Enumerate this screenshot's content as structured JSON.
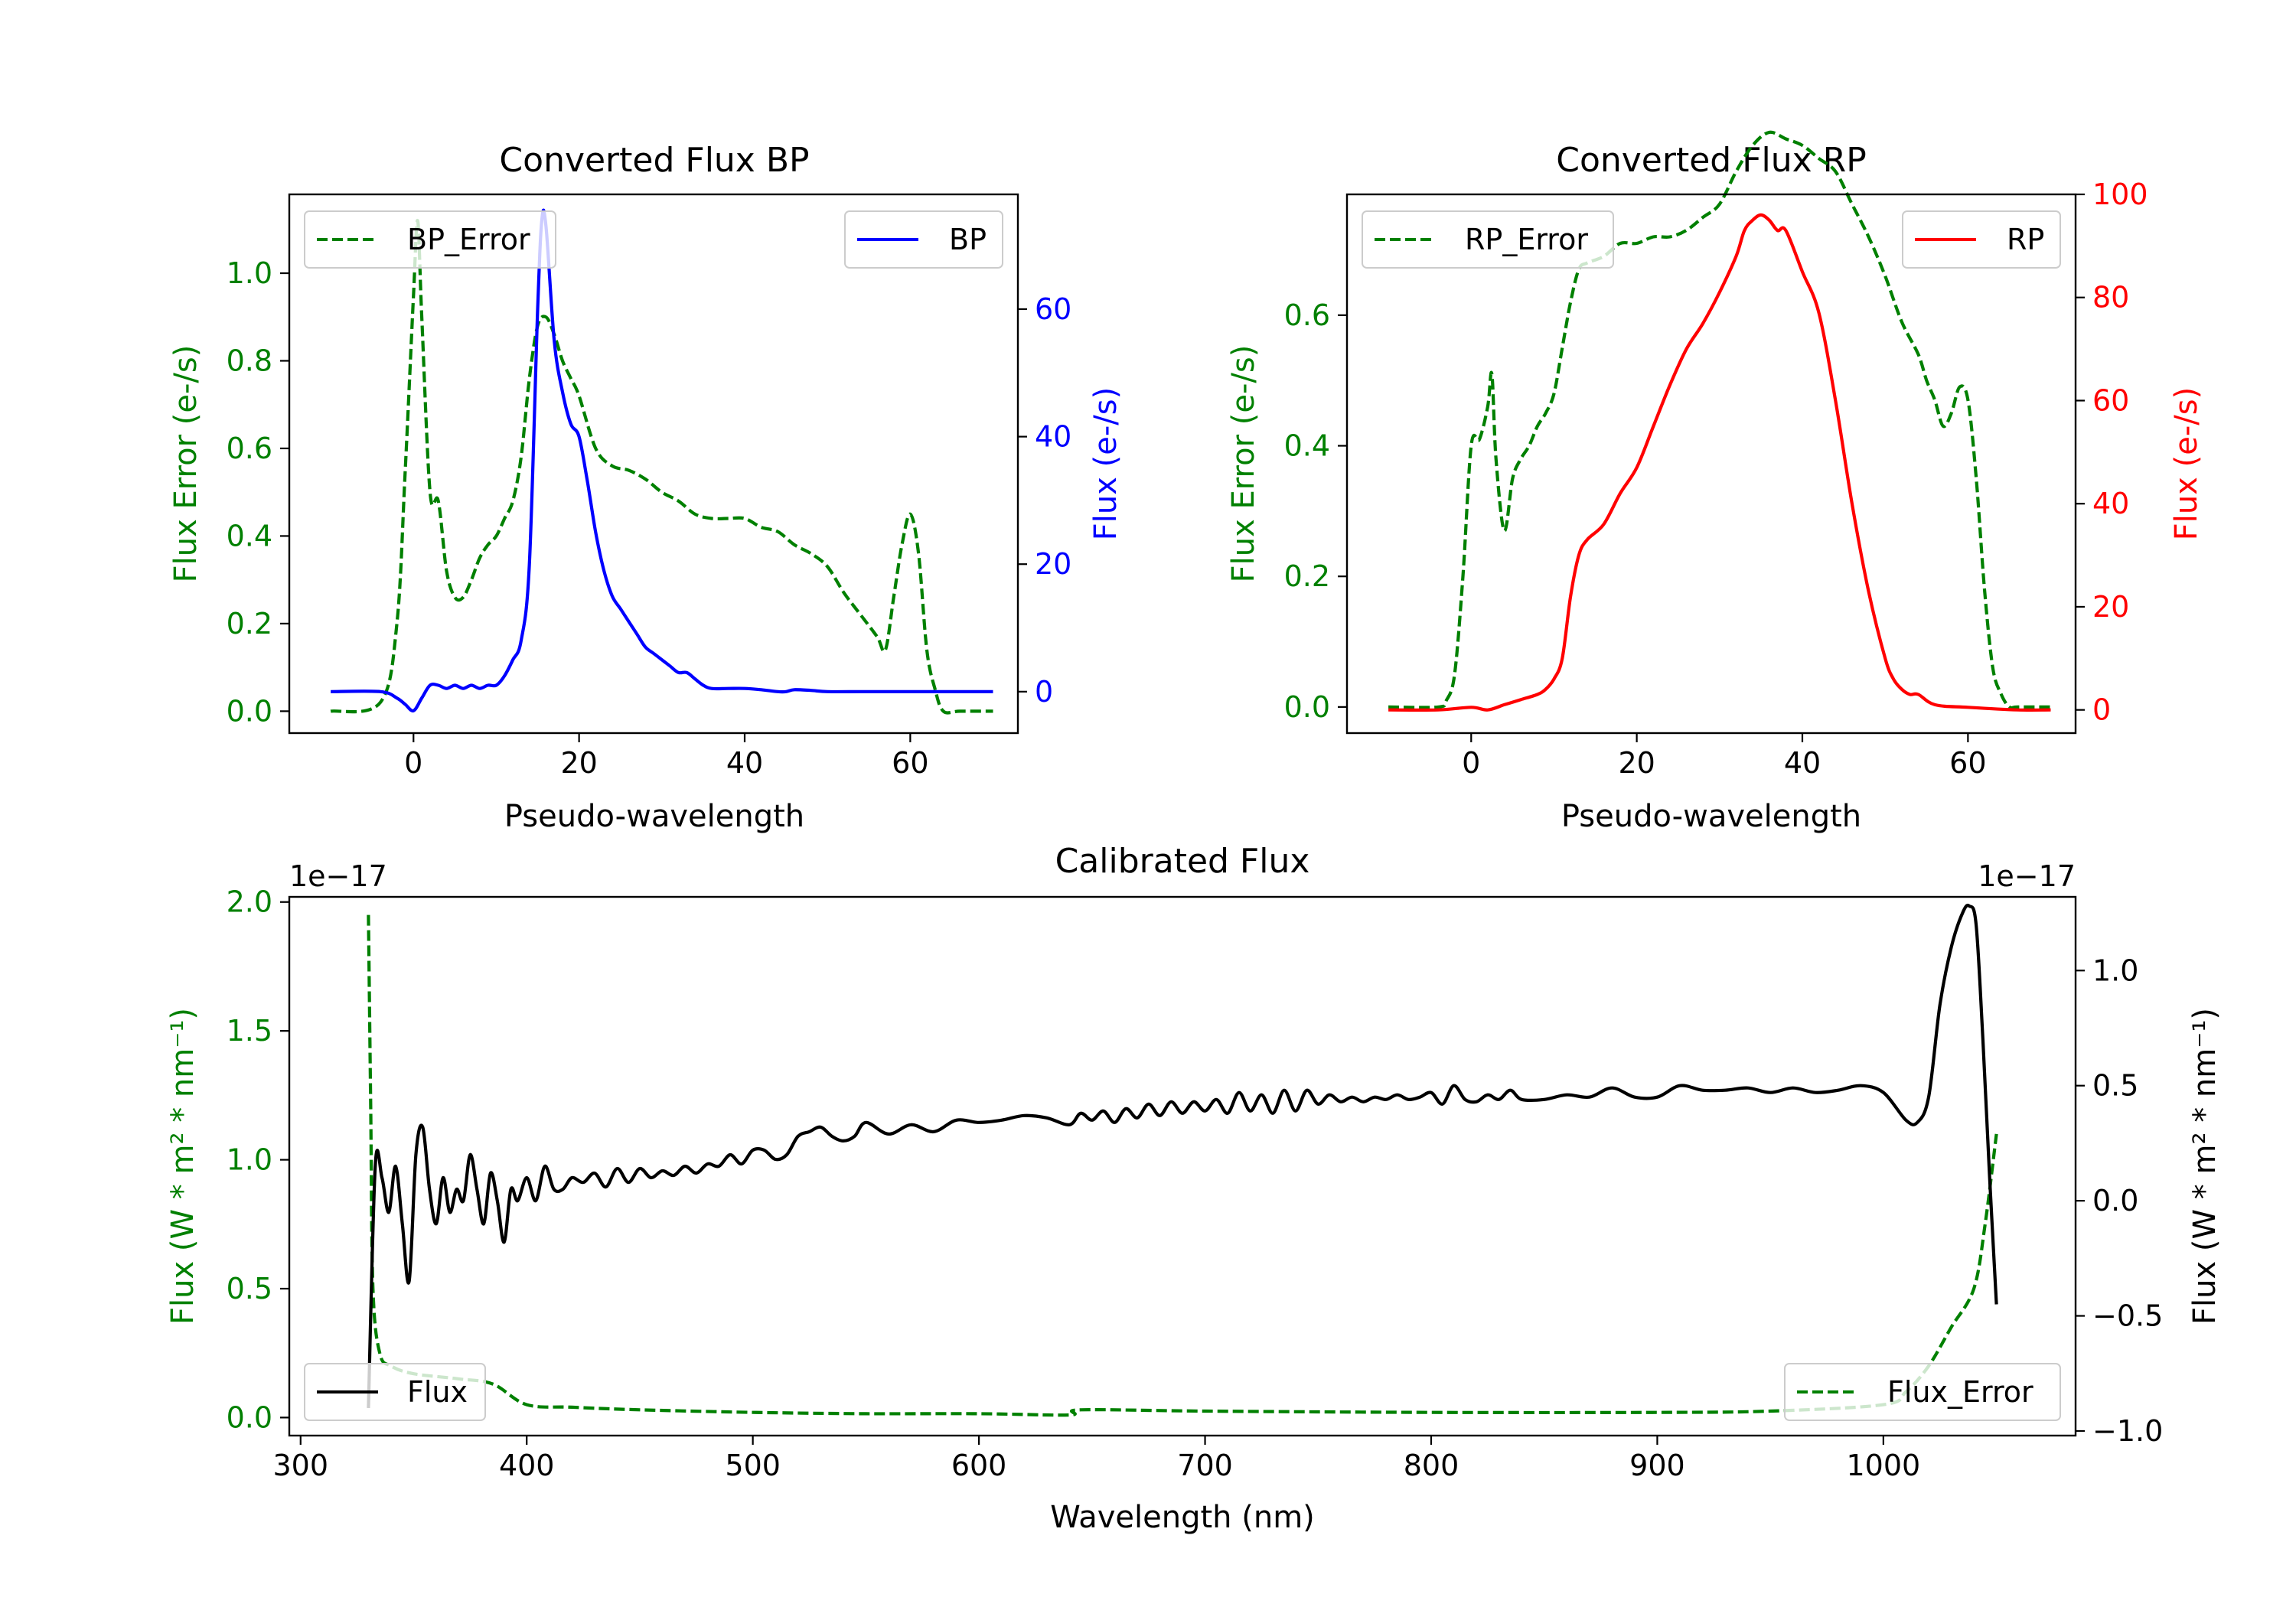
{
  "figure": {
    "type": "multi-panel-chart"
  },
  "chart_data": [
    {
      "id": "bp",
      "type": "line",
      "title": "Converted Flux BP",
      "xlabel": "Pseudo-wavelength",
      "ylabel_left": "Flux Error (e-/s)",
      "ylabel_right": "Flux (e-/s)",
      "xlim": [
        -15,
        73
      ],
      "ylim_left": [
        -0.05,
        1.18
      ],
      "ylim_right": [
        -6.5,
        78
      ],
      "xticks": [
        "0",
        "20",
        "40",
        "60"
      ],
      "yticks_left": [
        "0.0",
        "0.2",
        "0.4",
        "0.6",
        "0.8",
        "1.0"
      ],
      "yticks_right": [
        "0",
        "20",
        "40",
        "60"
      ],
      "legend_left": "BP_Error",
      "legend_right": "BP",
      "colors": {
        "error": "#008000",
        "flux": "#0000ff"
      },
      "series": [
        {
          "name": "BP_Error",
          "axis": "left",
          "style": "dashed",
          "color": "#008000",
          "x": [
            -10,
            -4,
            -2,
            -1,
            0,
            0.5,
            1,
            2,
            3,
            4,
            5,
            6,
            7,
            8,
            9,
            10,
            11,
            12,
            13,
            14,
            15,
            16,
            17,
            18,
            19,
            20,
            22,
            24,
            26,
            28,
            30,
            32,
            34,
            36,
            38,
            40,
            42,
            44,
            46,
            48,
            50,
            52,
            54,
            56,
            57,
            58,
            59,
            60,
            61,
            62,
            63,
            64,
            66,
            70
          ],
          "values": [
            0.0,
            0.02,
            0.2,
            0.55,
            0.95,
            1.12,
            0.9,
            0.5,
            0.48,
            0.32,
            0.26,
            0.26,
            0.3,
            0.35,
            0.38,
            0.4,
            0.44,
            0.48,
            0.58,
            0.76,
            0.88,
            0.9,
            0.86,
            0.8,
            0.76,
            0.72,
            0.6,
            0.56,
            0.55,
            0.53,
            0.5,
            0.48,
            0.45,
            0.44,
            0.44,
            0.44,
            0.42,
            0.41,
            0.38,
            0.36,
            0.33,
            0.27,
            0.22,
            0.17,
            0.14,
            0.26,
            0.38,
            0.45,
            0.36,
            0.14,
            0.05,
            0.0,
            0.0,
            0.0
          ]
        },
        {
          "name": "BP",
          "axis": "right",
          "style": "solid",
          "color": "#0000ff",
          "x": [
            -10,
            -4,
            -2,
            -1,
            0,
            1,
            2,
            3,
            4,
            5,
            6,
            7,
            8,
            9,
            10,
            11,
            12,
            13,
            14,
            15,
            15.5,
            16,
            17,
            18,
            19,
            20,
            21,
            22,
            23,
            24,
            25,
            26,
            27,
            28,
            29,
            30,
            31,
            32,
            33,
            34,
            35,
            36,
            38,
            40,
            42,
            44,
            45,
            46,
            48,
            50,
            54,
            58,
            62,
            70
          ],
          "values": [
            0,
            0,
            -1,
            -2,
            -3,
            -1,
            1,
            1,
            0.5,
            1,
            0.5,
            1,
            0.5,
            1,
            1,
            2.5,
            5,
            8,
            20,
            60,
            74,
            73,
            55,
            47,
            42,
            40,
            33,
            25,
            19,
            15,
            13,
            11,
            9,
            7,
            6,
            5,
            4,
            3,
            3,
            2,
            1,
            0.5,
            0.5,
            0.5,
            0.3,
            0,
            0,
            0.3,
            0.2,
            0,
            0,
            0,
            0,
            0
          ]
        }
      ]
    },
    {
      "id": "rp",
      "type": "line",
      "title": "Converted Flux RP",
      "xlabel": "Pseudo-wavelength",
      "ylabel_left": "Flux Error (e-/s)",
      "ylabel_right": "Flux (e-/s)",
      "xlim": [
        -15,
        73
      ],
      "ylim_left": [
        -0.04,
        0.785
      ],
      "ylim_right": [
        -4.5,
        100
      ],
      "xticks": [
        "0",
        "20",
        "40",
        "60"
      ],
      "yticks_left": [
        "0.0",
        "0.2",
        "0.4",
        "0.6"
      ],
      "yticks_right": [
        "0",
        "20",
        "40",
        "60",
        "80",
        "100"
      ],
      "legend_left": "RP_Error",
      "legend_right": "RP",
      "colors": {
        "error": "#008000",
        "flux": "#ff0000"
      },
      "series": [
        {
          "name": "RP_Error",
          "axis": "left",
          "style": "dashed",
          "color": "#008000",
          "x": [
            -10,
            -4,
            -3,
            -2,
            -1,
            0,
            1,
            2,
            2.5,
            3,
            4,
            5,
            6,
            7,
            8,
            9,
            10,
            11,
            12,
            13,
            14,
            16,
            18,
            20,
            22,
            24,
            26,
            28,
            30,
            32,
            34,
            36,
            38,
            40,
            42,
            44,
            46,
            48,
            50,
            52,
            54,
            55,
            56,
            57,
            58,
            59,
            60,
            61,
            62,
            63,
            64,
            65,
            66,
            70
          ],
          "values": [
            0,
            0,
            0.01,
            0.05,
            0.2,
            0.4,
            0.41,
            0.46,
            0.51,
            0.38,
            0.27,
            0.35,
            0.38,
            0.4,
            0.43,
            0.45,
            0.48,
            0.55,
            0.62,
            0.67,
            0.68,
            0.69,
            0.71,
            0.71,
            0.72,
            0.72,
            0.73,
            0.75,
            0.77,
            0.82,
            0.86,
            0.88,
            0.87,
            0.86,
            0.84,
            0.82,
            0.77,
            0.72,
            0.66,
            0.59,
            0.54,
            0.5,
            0.47,
            0.43,
            0.45,
            0.49,
            0.47,
            0.35,
            0.18,
            0.06,
            0.02,
            0,
            0,
            0
          ]
        },
        {
          "name": "RP",
          "axis": "right",
          "style": "solid",
          "color": "#ff0000",
          "x": [
            -10,
            -4,
            0,
            2,
            4,
            6,
            8,
            9,
            10,
            11,
            12,
            13,
            14,
            16,
            18,
            20,
            22,
            24,
            26,
            28,
            30,
            32,
            33,
            34,
            35,
            36,
            37,
            38,
            40,
            42,
            44,
            46,
            48,
            50,
            51,
            52,
            53,
            54,
            56,
            60,
            66,
            70
          ],
          "values": [
            0,
            0,
            0.5,
            0,
            1,
            2,
            3,
            4,
            6,
            10,
            22,
            30,
            33,
            36,
            42,
            47,
            55,
            63,
            70,
            75,
            81,
            88,
            93,
            95,
            96,
            95,
            93,
            93,
            85,
            77,
            60,
            40,
            23,
            10,
            6,
            4,
            3,
            3,
            1,
            0.5,
            0,
            0
          ]
        }
      ]
    },
    {
      "id": "calibrated",
      "type": "line",
      "title": "Calibrated Flux",
      "xlabel": "Wavelength (nm)",
      "ylabel_left": "Flux (W * m² * nm⁻¹)",
      "ylabel_right": "Flux (W * m² * nm⁻¹)",
      "multiplier_left": "1e−17",
      "multiplier_right": "1e−17",
      "xlim": [
        295,
        1085
      ],
      "ylim_left": [
        -0.07,
        2.02
      ],
      "ylim_right": [
        -1.02,
        1.32
      ],
      "xticks": [
        "300",
        "400",
        "500",
        "600",
        "700",
        "800",
        "900",
        "1000"
      ],
      "yticks_left": [
        "0.0",
        "0.5",
        "1.0",
        "1.5",
        "2.0"
      ],
      "yticks_right": [
        "−1.0",
        "−0.5",
        "0.0",
        "0.5",
        "1.0"
      ],
      "legend_left": "Flux",
      "legend_right": "Flux_Error",
      "colors": {
        "error": "#008000",
        "flux": "#000000"
      },
      "series": [
        {
          "name": "Flux_Error",
          "axis": "left",
          "style": "dashed",
          "color": "#008000",
          "scale": "1e-17",
          "x": [
            330,
            331,
            332,
            335,
            340,
            350,
            370,
            385,
            400,
            420,
            450,
            500,
            550,
            600,
            640,
            645,
            700,
            800,
            900,
            950,
            1000,
            1010,
            1020,
            1030,
            1040,
            1045,
            1050
          ],
          "values": [
            1.95,
            1.2,
            0.5,
            0.25,
            0.2,
            0.17,
            0.15,
            0.13,
            0.05,
            0.04,
            0.03,
            0.02,
            0.015,
            0.015,
            0.01,
            0.03,
            0.025,
            0.02,
            0.02,
            0.025,
            0.05,
            0.1,
            0.2,
            0.35,
            0.5,
            0.75,
            1.1
          ]
        },
        {
          "name": "Flux",
          "axis": "right",
          "style": "solid",
          "color": "#000000",
          "scale": "1e-17",
          "x": [
            330,
            333,
            336,
            339,
            342,
            345,
            348,
            351,
            354,
            357,
            360,
            363,
            366,
            369,
            372,
            375,
            378,
            381,
            384,
            387,
            390,
            393,
            396,
            400,
            404,
            408,
            412,
            416,
            420,
            425,
            430,
            435,
            440,
            445,
            450,
            455,
            460,
            465,
            470,
            475,
            480,
            485,
            490,
            495,
            500,
            505,
            510,
            515,
            520,
            525,
            530,
            535,
            540,
            545,
            550,
            560,
            570,
            580,
            590,
            600,
            610,
            620,
            630,
            640,
            645,
            650,
            655,
            660,
            665,
            670,
            675,
            680,
            685,
            690,
            695,
            700,
            705,
            710,
            715,
            720,
            725,
            730,
            735,
            740,
            745,
            750,
            755,
            760,
            765,
            770,
            775,
            780,
            785,
            790,
            795,
            800,
            805,
            810,
            815,
            820,
            825,
            830,
            835,
            840,
            850,
            860,
            870,
            880,
            890,
            900,
            910,
            920,
            930,
            940,
            950,
            960,
            970,
            980,
            990,
            1000,
            1010,
            1015,
            1020,
            1025,
            1030,
            1035,
            1038,
            1041,
            1044,
            1047,
            1050
          ],
          "values": [
            -0.9,
            0.15,
            0.1,
            -0.05,
            0.15,
            -0.1,
            -0.35,
            0.2,
            0.32,
            0.05,
            -0.1,
            0.1,
            -0.05,
            0.05,
            0.0,
            0.2,
            0.05,
            -0.1,
            0.12,
            0.0,
            -0.18,
            0.05,
            0.0,
            0.1,
            0.0,
            0.15,
            0.05,
            0.05,
            0.1,
            0.08,
            0.12,
            0.06,
            0.14,
            0.08,
            0.14,
            0.1,
            0.13,
            0.11,
            0.15,
            0.12,
            0.16,
            0.15,
            0.2,
            0.16,
            0.22,
            0.22,
            0.18,
            0.2,
            0.28,
            0.3,
            0.32,
            0.28,
            0.26,
            0.28,
            0.34,
            0.29,
            0.33,
            0.3,
            0.35,
            0.34,
            0.35,
            0.37,
            0.36,
            0.33,
            0.38,
            0.35,
            0.39,
            0.34,
            0.4,
            0.36,
            0.42,
            0.37,
            0.43,
            0.38,
            0.43,
            0.39,
            0.44,
            0.38,
            0.47,
            0.39,
            0.46,
            0.38,
            0.48,
            0.39,
            0.48,
            0.42,
            0.46,
            0.43,
            0.45,
            0.43,
            0.45,
            0.44,
            0.46,
            0.44,
            0.45,
            0.47,
            0.42,
            0.5,
            0.44,
            0.43,
            0.46,
            0.44,
            0.48,
            0.44,
            0.44,
            0.46,
            0.45,
            0.49,
            0.45,
            0.45,
            0.5,
            0.48,
            0.48,
            0.49,
            0.47,
            0.49,
            0.47,
            0.48,
            0.5,
            0.47,
            0.35,
            0.34,
            0.45,
            0.85,
            1.1,
            1.25,
            1.28,
            1.2,
            0.7,
            0.1,
            -0.45
          ]
        }
      ]
    }
  ]
}
